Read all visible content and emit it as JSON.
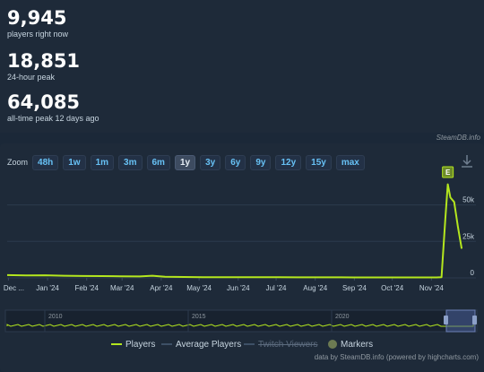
{
  "stats": {
    "players_now": {
      "value": "9,945",
      "label": "players right now"
    },
    "peak_24h": {
      "value": "18,851",
      "label": "24-hour peak"
    },
    "peak_all": {
      "value": "64,085",
      "label": "all-time peak 12 days ago"
    }
  },
  "credit_top": "SteamDB.info",
  "zoom": {
    "label": "Zoom",
    "options": [
      "48h",
      "1w",
      "1m",
      "3m",
      "6m",
      "1y",
      "3y",
      "6y",
      "9y",
      "12y",
      "15y",
      "max"
    ],
    "active": "1y"
  },
  "icons": {
    "download": "download-icon"
  },
  "colors": {
    "players": "#b4e61e",
    "average": "#3d5066",
    "twitch": "#6b7a9a",
    "markers": "#6c7a52",
    "grid": "#2c3a4d",
    "navigator_window": "#4a5f99"
  },
  "chart_data": {
    "type": "line",
    "title": "",
    "xlabel": "",
    "ylabel": "",
    "ylim": [
      0,
      70000
    ],
    "y_ticks": [
      "0",
      "25k",
      "50k"
    ],
    "y_tick_values": [
      0,
      25000,
      50000
    ],
    "x_ticks": [
      "Dec ...",
      "Jan '24",
      "Feb '24",
      "Mar '24",
      "Apr '24",
      "May '24",
      "Jun '24",
      "Jul '24",
      "Aug '24",
      "Sep '24",
      "Oct '24",
      "Nov '24"
    ],
    "x_tick_positions": [
      1,
      32,
      63,
      91,
      122,
      152,
      183,
      213,
      244,
      275,
      305,
      336
    ],
    "xlim": [
      0,
      367
    ],
    "series": [
      {
        "name": "Players",
        "x": [
          0,
          15,
          30,
          45,
          60,
          75,
          90,
          105,
          115,
          125,
          140,
          155,
          170,
          185,
          200,
          215,
          230,
          245,
          260,
          275,
          290,
          305,
          320,
          330,
          340,
          344,
          347,
          349,
          351,
          354,
          357,
          360
        ],
        "y": [
          1900,
          1700,
          1800,
          1500,
          1300,
          1200,
          1100,
          1000,
          1500,
          800,
          600,
          500,
          500,
          450,
          400,
          400,
          380,
          350,
          350,
          330,
          320,
          300,
          300,
          300,
          300,
          500,
          40000,
          64085,
          55000,
          52000,
          35000,
          20000
        ]
      }
    ],
    "markers": [
      {
        "x": 349,
        "label": "E"
      }
    ],
    "navigator": {
      "year_labels": [
        "2010",
        "2015",
        "2020"
      ]
    },
    "legend": [
      "Players",
      "Average Players",
      "Twitch Viewers",
      "Markers"
    ]
  },
  "credit_bottom": "data by SteamDB.info (powered by highcharts.com)"
}
